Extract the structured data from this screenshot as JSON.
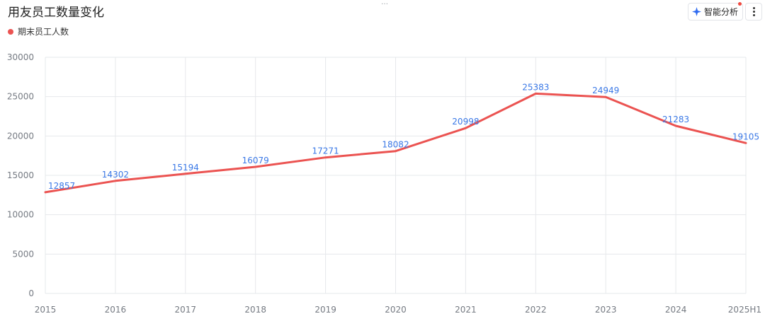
{
  "header": {
    "title": "用友员工数量变化",
    "ai_button_label": "智能分析",
    "drag_handle": "…"
  },
  "colors": {
    "series": "#eb5351",
    "label": "#3a78e6",
    "ai_icon": "#2f6bf0",
    "notification": "#f0483e"
  },
  "chart_data": {
    "type": "line",
    "title": "用友员工数量变化",
    "xlabel": "",
    "ylabel": "",
    "categories": [
      "2015",
      "2016",
      "2017",
      "2018",
      "2019",
      "2020",
      "2021",
      "2022",
      "2023",
      "2024",
      "2025H1"
    ],
    "series": [
      {
        "name": "期末员工人数",
        "values": [
          12857,
          14302,
          15194,
          16079,
          17271,
          18082,
          20998,
          25383,
          24949,
          21283,
          19105
        ]
      }
    ],
    "ylim": [
      0,
      30000
    ],
    "yticks": [
      0,
      5000,
      10000,
      15000,
      20000,
      25000,
      30000
    ],
    "grid": true,
    "data_labels": true,
    "legend": "top-left"
  }
}
